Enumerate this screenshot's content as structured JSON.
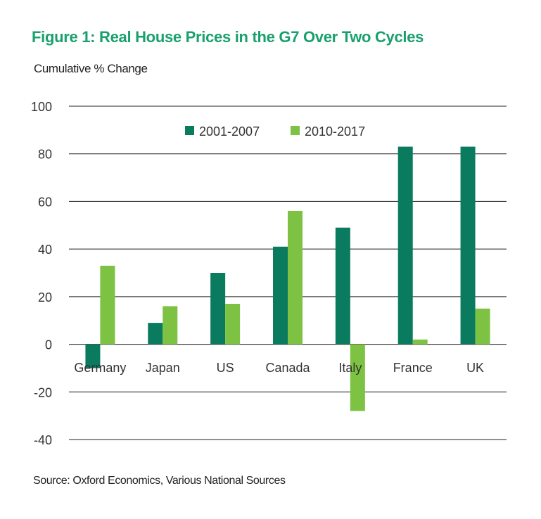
{
  "title": "Figure 1: Real House Prices in the G7 Over Two Cycles",
  "subtitle": "Cumulative % Change",
  "source": "Source: Oxford Economics, Various National Sources",
  "colors": {
    "title": "#1aa06e",
    "series_2001_2007": "#0a7b5f",
    "series_2010_2017": "#7dc242",
    "gridline": "#222222",
    "text": "#333333"
  },
  "chart_data": {
    "type": "bar",
    "title": "Figure 1: Real House Prices in the G7 Over Two Cycles",
    "ylabel": "Cumulative % Change",
    "xlabel": "",
    "categories": [
      "Germany",
      "Japan",
      "US",
      "Canada",
      "Italy",
      "France",
      "UK"
    ],
    "series": [
      {
        "name": "2001-2007",
        "values": [
          -10,
          9,
          30,
          41,
          49,
          83,
          83
        ]
      },
      {
        "name": "2010-2017",
        "values": [
          33,
          16,
          17,
          56,
          -28,
          2,
          15
        ]
      }
    ],
    "ylim": [
      -40,
      100
    ],
    "yticks": [
      -40,
      -20,
      0,
      20,
      40,
      60,
      80,
      100
    ],
    "grid": true,
    "legend_position": "top-center"
  }
}
